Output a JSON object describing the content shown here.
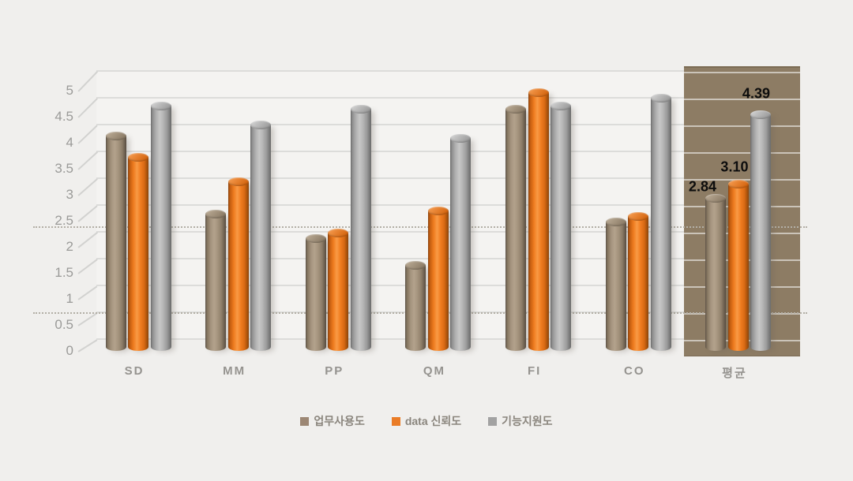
{
  "chart_data": {
    "type": "bar",
    "subtype": "3d-cylinder",
    "title": "",
    "xlabel": "",
    "ylabel": "",
    "categories": [
      "SD",
      "MM",
      "PP",
      "QM",
      "FI",
      "CO",
      "평균"
    ],
    "series": [
      {
        "name": "업무사용도",
        "color": "#9c8774",
        "values": [
          4.0,
          2.55,
          2.1,
          1.6,
          4.5,
          2.4,
          2.84
        ]
      },
      {
        "name": "data 신뢰도",
        "color": "#ea7c26",
        "values": [
          3.6,
          3.15,
          2.2,
          2.6,
          4.8,
          2.5,
          3.1
        ]
      },
      {
        "name": "기능지원도",
        "color": "#a2a2a2",
        "values": [
          4.55,
          4.2,
          4.5,
          3.95,
          4.55,
          4.7,
          4.39
        ]
      }
    ],
    "data_labels": {
      "category": "평균",
      "values": [
        "2.84",
        "3.10",
        "4.39"
      ]
    },
    "ylim": [
      0,
      5
    ],
    "ytick_step": 0.5,
    "ytick_labels": [
      "5",
      "4.5",
      "4",
      "3.5",
      "3",
      "2.5",
      "2",
      "1.5",
      "1",
      "0.5",
      "0"
    ],
    "grid": "horizontal solid gridlines every 0.5",
    "dotted_reference_lines": [
      2.3,
      0.7
    ],
    "legend_position": "bottom",
    "highlight": {
      "category": "평균",
      "fill": "#8d7c64"
    }
  }
}
